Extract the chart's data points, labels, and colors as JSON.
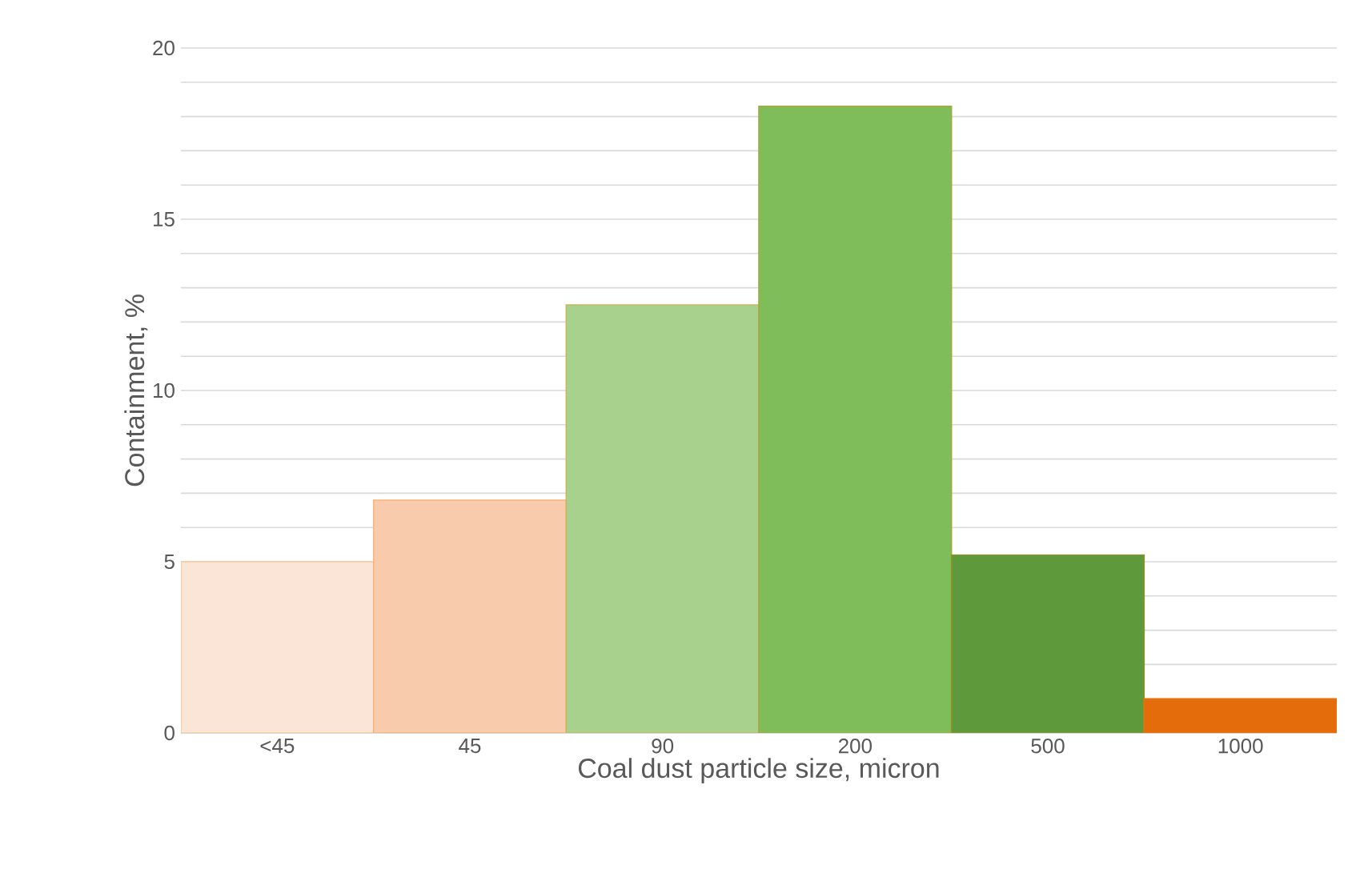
{
  "chart_data": {
    "type": "bar",
    "xlabel": "Coal dust particle size, micron",
    "ylabel": "Containment, %",
    "categories": [
      "<45",
      "45",
      "90",
      "200",
      "500",
      "1000"
    ],
    "values": [
      5.0,
      6.8,
      12.5,
      18.3,
      5.2,
      1.0
    ],
    "colors": [
      "#fbe5d6",
      "#f8cbad",
      "#a9d18e",
      "#7fbc5a",
      "#5e9a3c",
      "#e46c0a"
    ],
    "ylim": [
      0,
      20
    ],
    "yticks": [
      0,
      {
        "value": 1,
        "label": null
      },
      {
        "value": 2,
        "label": null
      },
      {
        "value": 3,
        "label": null
      },
      {
        "value": 4,
        "label": null
      },
      5,
      {
        "value": 6,
        "label": null
      },
      {
        "value": 7,
        "label": null
      },
      {
        "value": 8,
        "label": null
      },
      {
        "value": 9,
        "label": null
      },
      10,
      {
        "value": 11,
        "label": null
      },
      {
        "value": 12,
        "label": null
      },
      {
        "value": 13,
        "label": null
      },
      {
        "value": 14,
        "label": null
      },
      15,
      {
        "value": 16,
        "label": null
      },
      {
        "value": 17,
        "label": null
      },
      {
        "value": 18,
        "label": null
      },
      {
        "value": 19,
        "label": null
      },
      20
    ],
    "grid": "y"
  }
}
